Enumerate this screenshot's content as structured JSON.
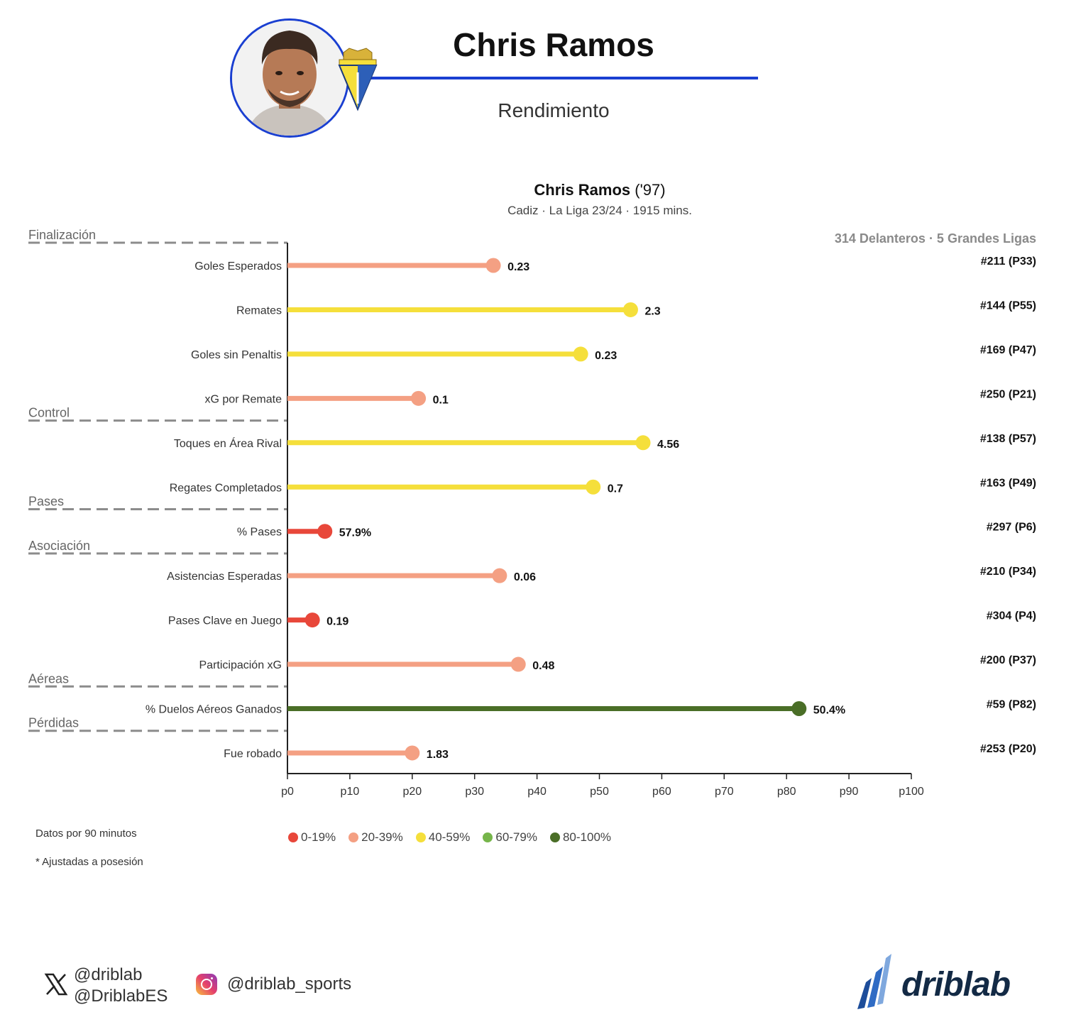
{
  "header": {
    "player_name": "Chris Ramos",
    "subtitle": "Rendimiento"
  },
  "chart_header": {
    "name": "Chris Ramos",
    "birth_year": "('97)",
    "info": "Cadiz · La Liga 23/24 · 1915 mins.",
    "pool": "314 Delanteros · 5 Grandes Ligas"
  },
  "chart_data": {
    "type": "bar",
    "orientation": "horizontal-lollipop",
    "xlim": [
      0,
      100
    ],
    "x_ticks": [
      "p0",
      "p10",
      "p20",
      "p30",
      "p40",
      "p50",
      "p60",
      "p70",
      "p80",
      "p90",
      "p100"
    ],
    "sections": [
      {
        "name": "Finalización",
        "before_index": 0
      },
      {
        "name": "Control",
        "before_index": 4
      },
      {
        "name": "Pases",
        "before_index": 6
      },
      {
        "name": "Asociación",
        "before_index": 7
      },
      {
        "name": "Aéreas",
        "before_index": 10
      },
      {
        "name": "Pérdidas",
        "before_index": 11
      }
    ],
    "metrics": [
      {
        "label": "Goles Esperados",
        "percentile": 33,
        "value": "0.23",
        "rank": "#211 (P33)",
        "band": 1
      },
      {
        "label": "Remates",
        "percentile": 55,
        "value": "2.3",
        "rank": "#144 (P55)",
        "band": 2
      },
      {
        "label": "Goles sin Penaltis",
        "percentile": 47,
        "value": "0.23",
        "rank": "#169 (P47)",
        "band": 2
      },
      {
        "label": "xG por Remate",
        "percentile": 21,
        "value": "0.1",
        "rank": "#250 (P21)",
        "band": 1
      },
      {
        "label": "Toques en Área Rival",
        "percentile": 57,
        "value": "4.56",
        "rank": "#138 (P57)",
        "band": 2
      },
      {
        "label": "Regates Completados",
        "percentile": 49,
        "value": "0.7",
        "rank": "#163 (P49)",
        "band": 2
      },
      {
        "label": "% Pases",
        "percentile": 6,
        "value": "57.9%",
        "rank": "#297 (P6)",
        "band": 0
      },
      {
        "label": "Asistencias Esperadas",
        "percentile": 34,
        "value": "0.06",
        "rank": "#210 (P34)",
        "band": 1
      },
      {
        "label": "Pases Clave en Juego",
        "percentile": 4,
        "value": "0.19",
        "rank": "#304 (P4)",
        "band": 0
      },
      {
        "label": "Participación xG",
        "percentile": 37,
        "value": "0.48",
        "rank": "#200 (P37)",
        "band": 1
      },
      {
        "label": "% Duelos Aéreos Ganados",
        "percentile": 82,
        "value": "50.4%",
        "rank": "#59 (P82)",
        "band": 4
      },
      {
        "label": "Fue robado",
        "percentile": 20,
        "value": "1.83",
        "rank": "#253 (P20)",
        "band": 1
      }
    ],
    "legend": [
      {
        "label": "0-19%",
        "color": "#e8473a"
      },
      {
        "label": "20-39%",
        "color": "#f4a083"
      },
      {
        "label": "40-59%",
        "color": "#f5df3b"
      },
      {
        "label": "60-79%",
        "color": "#76b54a"
      },
      {
        "label": "80-100%",
        "color": "#4a6e27"
      }
    ]
  },
  "notes": {
    "per90": "Datos por 90 minutos",
    "adjusted": "* Ajustadas a posesión"
  },
  "footer": {
    "twitter_1": "@driblab",
    "twitter_2": "@DriblabES",
    "instagram": "@driblab_sports",
    "brand": "driblab"
  }
}
